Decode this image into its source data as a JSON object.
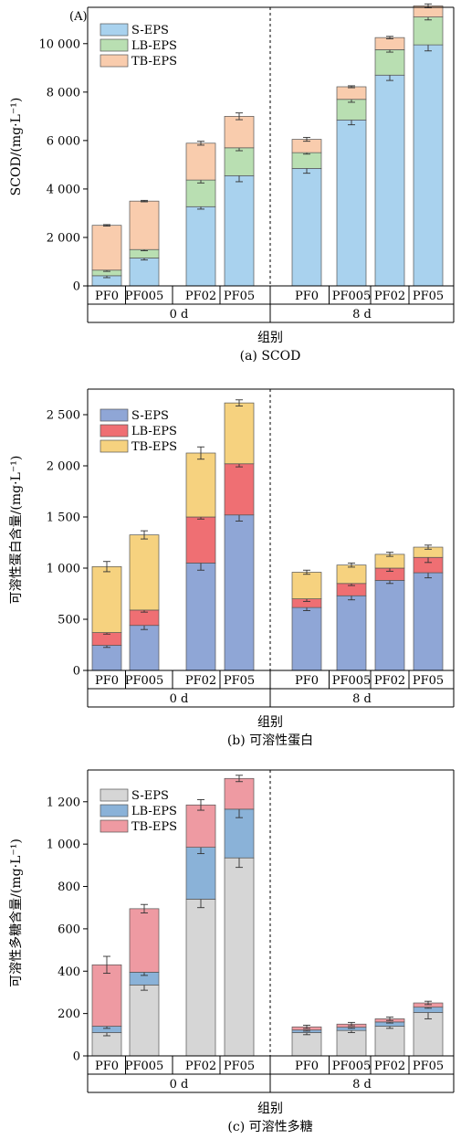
{
  "chart_data": [
    {
      "type": "bar",
      "stacked": true,
      "panel_mark": "(A)",
      "caption": "(a) SCOD",
      "ylabel": "SCOD/(mg·L⁻¹)",
      "xlabel": "组别",
      "ylim": [
        0,
        11500
      ],
      "yticks": [
        0,
        2000,
        4000,
        6000,
        8000,
        10000
      ],
      "ytick_labels": [
        "0",
        "2 000",
        "4 000",
        "6 000",
        "8 000",
        "10 000"
      ],
      "groups": [
        "0 d",
        "8 d"
      ],
      "categories": [
        "PF0",
        "PF005",
        "PF02",
        "PF05"
      ],
      "series": [
        {
          "name": "S-EPS",
          "color": "#a9d2ee",
          "values": [
            [
              420,
              1150,
              3270,
              4550
            ],
            [
              4850,
              6850,
              8700,
              9950
            ]
          ],
          "errors": [
            [
              80,
              80,
              100,
              250
            ],
            [
              200,
              200,
              220,
              250
            ]
          ]
        },
        {
          "name": "LB-EPS",
          "color": "#b9dfb2",
          "values": [
            [
              230,
              350,
              1100,
              1150
            ],
            [
              650,
              850,
              1050,
              1150
            ]
          ],
          "errors": [
            [
              50,
              50,
              120,
              120
            ],
            [
              60,
              120,
              100,
              120
            ]
          ]
        },
        {
          "name": "TB-EPS",
          "color": "#f9ccad",
          "values": [
            [
              1850,
              2000,
              1520,
              1300
            ],
            [
              550,
              520,
              500,
              460
            ]
          ],
          "errors": [
            [
              30,
              30,
              80,
              140
            ],
            [
              80,
              40,
              50,
              80
            ]
          ]
        }
      ]
    },
    {
      "type": "bar",
      "stacked": true,
      "caption": "(b) 可溶性蛋白",
      "ylabel": "可溶性蛋白含量/(mg·L⁻¹)",
      "xlabel": "组别",
      "ylim": [
        0,
        2750
      ],
      "yticks": [
        0,
        500,
        1000,
        1500,
        2000,
        2500
      ],
      "ytick_labels": [
        "0",
        "500",
        "1 000",
        "1 500",
        "2 000",
        "2 500"
      ],
      "groups": [
        "0 d",
        "8 d"
      ],
      "categories": [
        "PF0",
        "PF005",
        "PF02",
        "PF05"
      ],
      "series": [
        {
          "name": "S-EPS",
          "color": "#8fa6d6",
          "values": [
            [
              245,
              440,
              1050,
              1520
            ],
            [
              615,
              730,
              880,
              955
            ]
          ],
          "errors": [
            [
              20,
              40,
              70,
              60
            ],
            [
              30,
              40,
              30,
              50
            ]
          ]
        },
        {
          "name": "LB-EPS",
          "color": "#ef6f73",
          "values": [
            [
              125,
              150,
              450,
              500
            ],
            [
              85,
              120,
              120,
              150
            ]
          ],
          "errors": [
            [
              15,
              20,
              20,
              30
            ],
            [
              25,
              20,
              30,
              50
            ]
          ]
        },
        {
          "name": "TB-EPS",
          "color": "#f6d27f",
          "values": [
            [
              645,
              735,
              625,
              595
            ],
            [
              260,
              180,
              135,
              100
            ]
          ],
          "errors": [
            [
              50,
              40,
              60,
              30
            ],
            [
              20,
              20,
              20,
              20
            ]
          ]
        }
      ]
    },
    {
      "type": "bar",
      "stacked": true,
      "caption": "(c) 可溶性多糖",
      "ylabel": "可溶性多糖含量/(mg·L⁻¹)",
      "xlabel": "组别",
      "ylim": [
        0,
        1350
      ],
      "yticks": [
        0,
        200,
        400,
        600,
        800,
        1000,
        1200
      ],
      "ytick_labels": [
        "0",
        "200",
        "400",
        "600",
        "800",
        "1 000",
        "1 200"
      ],
      "groups": [
        "0 d",
        "8 d"
      ],
      "categories": [
        "PF0",
        "PF005",
        "PF02",
        "PF05"
      ],
      "series": [
        {
          "name": "S-EPS",
          "color": "#d6d6d6",
          "values": [
            [
              110,
              335,
              740,
              935
            ],
            [
              110,
              120,
              140,
              205
            ]
          ],
          "errors": [
            [
              15,
              25,
              40,
              45
            ],
            [
              10,
              10,
              10,
              30
            ]
          ]
        },
        {
          "name": "LB-EPS",
          "color": "#8ab2d8",
          "values": [
            [
              30,
              60,
              245,
              230
            ],
            [
              12,
              15,
              20,
              25
            ]
          ],
          "errors": [
            [
              10,
              15,
              30,
              40
            ],
            [
              5,
              5,
              5,
              5
            ]
          ]
        },
        {
          "name": "TB-EPS",
          "color": "#ee9aa2",
          "values": [
            [
              290,
              300,
              200,
              145
            ],
            [
              15,
              15,
              15,
              20
            ]
          ],
          "errors": [
            [
              40,
              20,
              25,
              15
            ],
            [
              8,
              8,
              8,
              8
            ]
          ]
        }
      ]
    }
  ]
}
